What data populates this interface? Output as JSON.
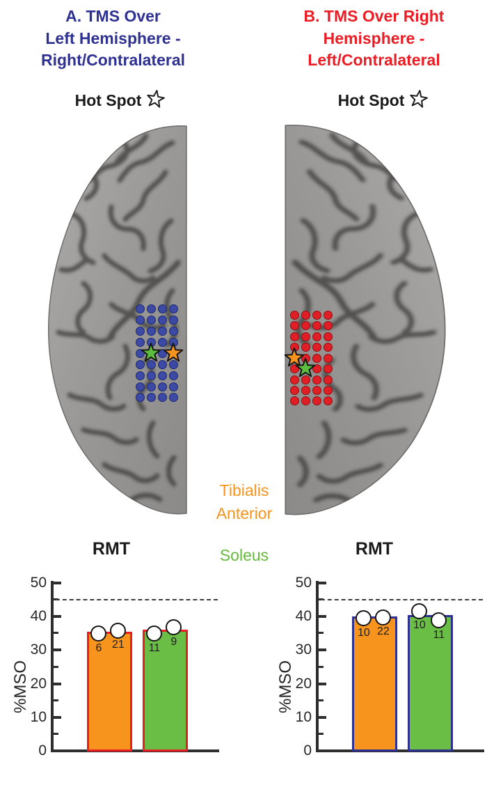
{
  "figure": {
    "hotspot_label": "Hot Spot",
    "hotspot_icon": "star-outline-icon",
    "panel_a": {
      "title_lines": [
        "A. TMS Over",
        "Left Hemisphere -",
        "Right/Contralateral"
      ],
      "title_color": "#2E3192"
    },
    "panel_b": {
      "title_lines": [
        "B. TMS Over Right",
        "Hemisphere -",
        "Left/Contralateral"
      ],
      "title_color": "#EC1C24"
    },
    "legend": {
      "tibialis_line1": "Tibialis",
      "tibialis_line2": "Anterior",
      "tibialis_color": "#F7941D",
      "soleus_label": "Soleus",
      "soleus_color": "#66B93D"
    }
  },
  "brain_left": {
    "side": "left-hemisphere",
    "grid_rows": 9,
    "grid_cols": 4,
    "dot_color": "#3C4AA5",
    "dot_outline": "#1C2A70",
    "hotspots": [
      {
        "row": 5,
        "col": 2,
        "muscle": "Soleus",
        "color": "#5CBE3E"
      },
      {
        "row": 5,
        "col": 4,
        "muscle": "Tibialis-Anterior",
        "color": "#F7941D"
      }
    ]
  },
  "brain_right": {
    "side": "right-hemisphere",
    "grid_rows": 9,
    "grid_cols": 4,
    "dot_color": "#E01E25",
    "dot_outline": "#8A1214",
    "hotspots": [
      {
        "row": 5,
        "col": 1,
        "muscle": "Tibialis-Anterior",
        "color": "#F7941D"
      },
      {
        "row": 6,
        "col": 2,
        "muscle": "Soleus",
        "color": "#5CBE3E"
      }
    ]
  },
  "chart_data": [
    {
      "type": "bar",
      "panel": "A",
      "title": "RMT",
      "ylabel": "%MSO",
      "ylim": [
        0,
        50
      ],
      "ytick_labels": [
        0,
        10,
        20,
        30,
        40,
        50
      ],
      "ytick_major": 10,
      "ytick_minor": 5,
      "threshold_dashed_line": 45,
      "grid": "off",
      "bar_outline_color": "#EC1C24",
      "categories": [
        "Tibialis Anterior",
        "Soleus"
      ],
      "bars": [
        {
          "category": "Tibialis Anterior",
          "fill": "#F7941D",
          "mean": 35.5,
          "points": [
            {
              "participant": "6",
              "value": 34.9
            },
            {
              "participant": "21",
              "value": 35.8
            }
          ]
        },
        {
          "category": "Soleus",
          "fill": "#6ABD45",
          "mean": 36,
          "points": [
            {
              "participant": "11",
              "value": 34.9
            },
            {
              "participant": "9",
              "value": 36.8
            }
          ]
        }
      ]
    },
    {
      "type": "bar",
      "panel": "B",
      "title": "RMT",
      "ylabel": "%MSO",
      "ylim": [
        0,
        50
      ],
      "ytick_labels": [
        0,
        10,
        20,
        30,
        40,
        50
      ],
      "ytick_major": 10,
      "ytick_minor": 5,
      "threshold_dashed_line": 45,
      "grid": "off",
      "bar_outline_color": "#2E3192",
      "categories": [
        "Tibialis Anterior",
        "Soleus"
      ],
      "bars": [
        {
          "category": "Tibialis Anterior",
          "fill": "#F7941D",
          "mean": 40,
          "points": [
            {
              "participant": "10",
              "value": 39.5
            },
            {
              "participant": "22",
              "value": 39.8
            }
          ]
        },
        {
          "category": "Soleus",
          "fill": "#6ABD45",
          "mean": 40.5,
          "points": [
            {
              "participant": "10",
              "value": 41.6
            },
            {
              "participant": "11",
              "value": 38.9
            }
          ]
        }
      ]
    }
  ]
}
